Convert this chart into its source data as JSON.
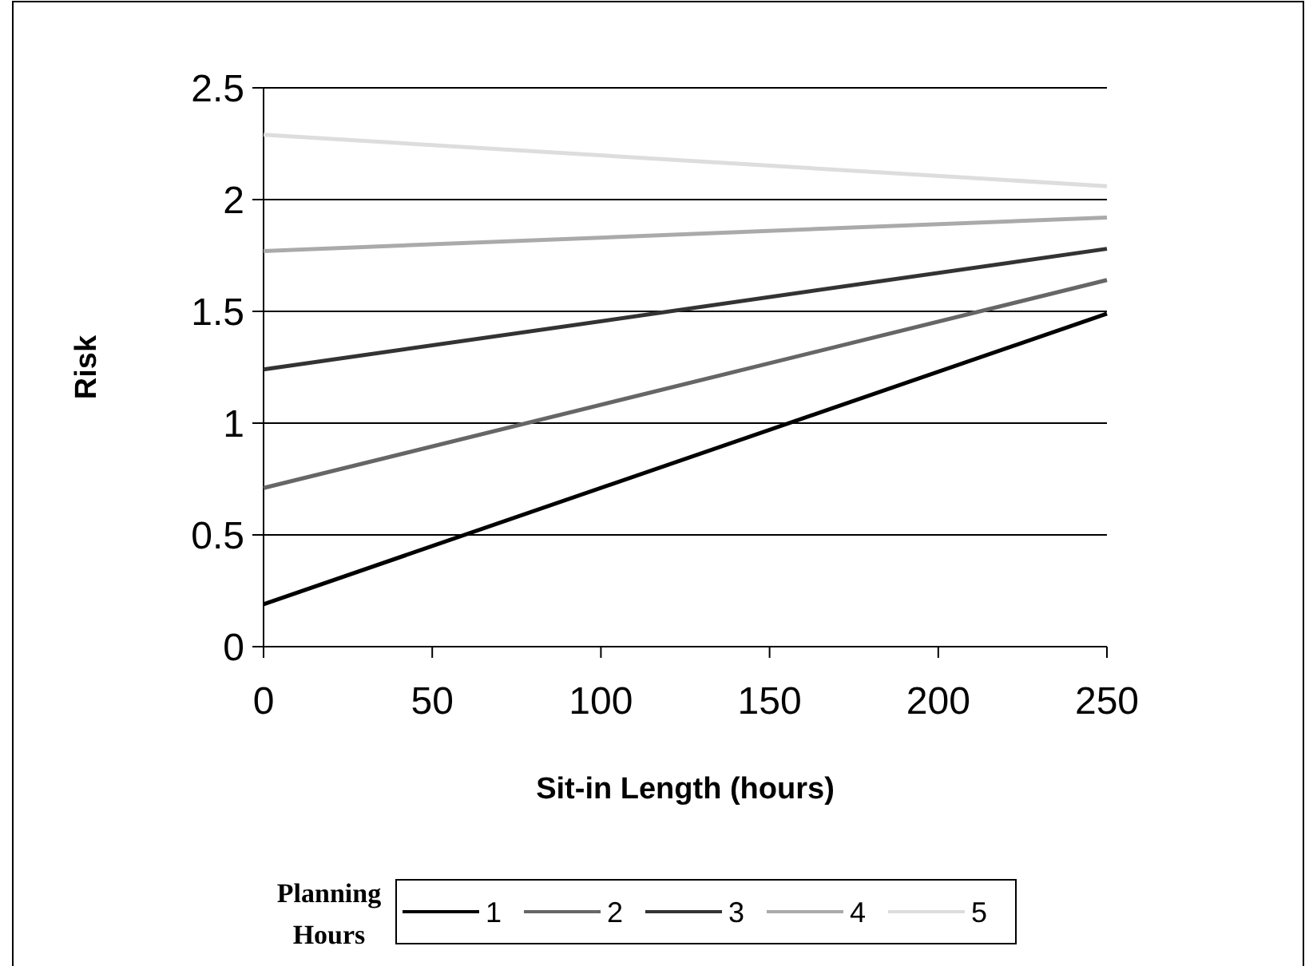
{
  "chart_data": {
    "type": "line",
    "xlabel": "Sit-in Length (hours)",
    "ylabel": "Risk",
    "legend_title": "Planning Hours",
    "legend": "bottom",
    "grid": "y",
    "marker": "none",
    "line_style": "solid",
    "x": [
      0,
      250
    ],
    "xlim": [
      0,
      250
    ],
    "xticks": [
      0,
      50,
      100,
      150,
      200,
      250
    ],
    "ylim": [
      0,
      2.5
    ],
    "yticks": [
      0,
      0.5,
      1,
      1.5,
      2,
      2.5
    ],
    "series": [
      {
        "name": "1",
        "color": "#000000",
        "values": [
          0.19,
          1.49
        ]
      },
      {
        "name": "2",
        "color": "#666666",
        "values": [
          0.71,
          1.64
        ]
      },
      {
        "name": "3",
        "color": "#333333",
        "values": [
          1.24,
          1.78
        ]
      },
      {
        "name": "4",
        "color": "#aaaaaa",
        "values": [
          1.77,
          1.92
        ]
      },
      {
        "name": "5",
        "color": "#dddddd",
        "values": [
          2.29,
          2.06
        ]
      }
    ]
  }
}
